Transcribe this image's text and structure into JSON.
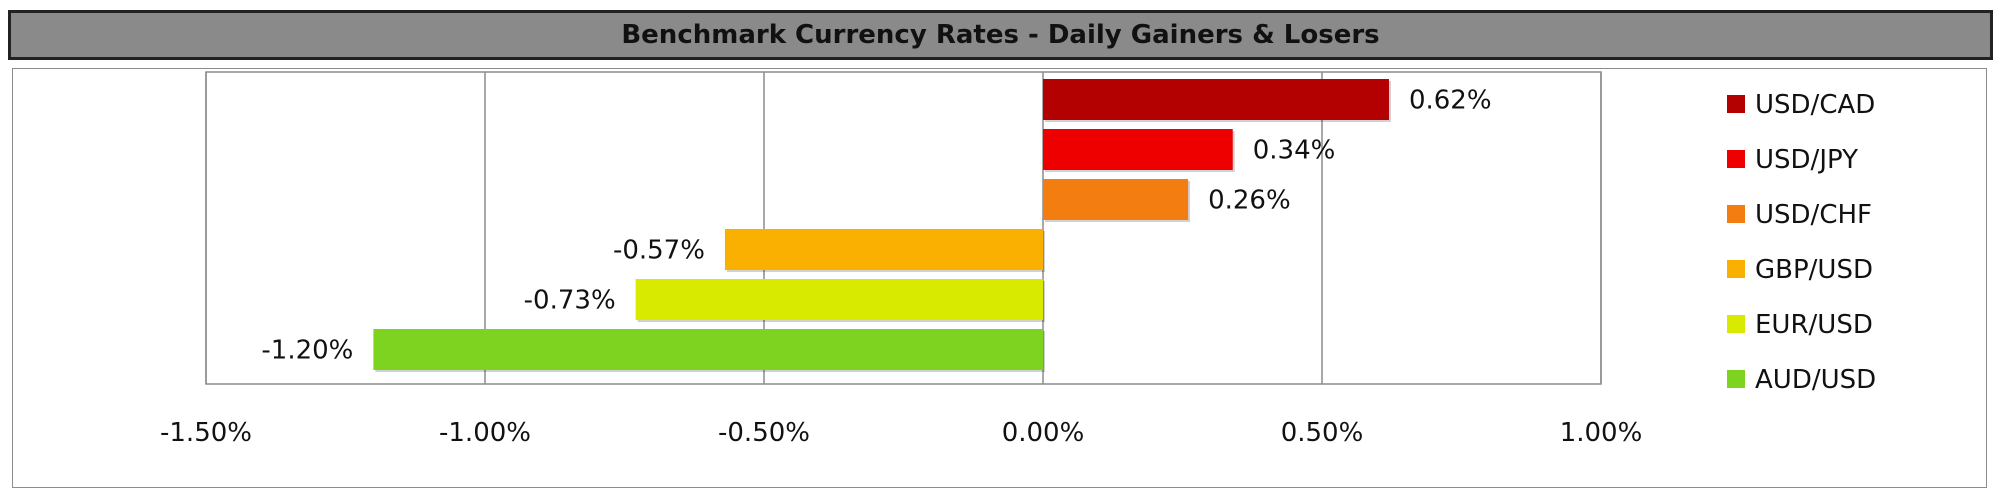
{
  "chart_data": {
    "type": "bar",
    "orientation": "horizontal",
    "title": "Benchmark Currency Rates - Daily Gainers & Losers",
    "xlabel": "",
    "ylabel": "",
    "xlim": [
      -0.015,
      0.01
    ],
    "grid": true,
    "legend_position": "right",
    "categories": [
      "USD/CAD",
      "USD/JPY",
      "USD/CHF",
      "GBP/USD",
      "EUR/USD",
      "AUD/USD"
    ],
    "values": [
      0.0062,
      0.0034,
      0.0026,
      -0.0057,
      -0.0073,
      -0.012
    ],
    "data_labels": [
      "0.62%",
      "0.34%",
      "0.26%",
      "-0.57%",
      "-0.73%",
      "-1.20%"
    ],
    "colors": [
      "#B30000",
      "#EE0000",
      "#F47D12",
      "#F9B000",
      "#D7EA00",
      "#7ED321"
    ],
    "ticks": [
      -0.015,
      -0.01,
      -0.005,
      0,
      0.005,
      0.01
    ],
    "tick_labels": [
      "-1.50%",
      "-1.00%",
      "-0.50%",
      "0.00%",
      "0.50%",
      "1.00%"
    ],
    "legend": [
      "USD/CAD",
      "USD/JPY",
      "USD/CHF",
      "GBP/USD",
      "EUR/USD",
      "AUD/USD"
    ]
  }
}
